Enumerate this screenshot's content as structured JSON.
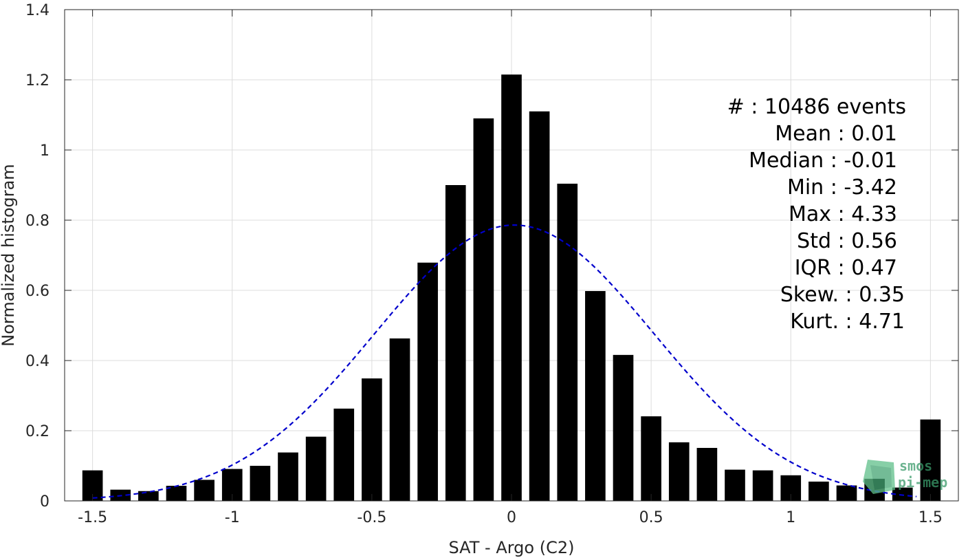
{
  "chart_data": {
    "type": "bar",
    "xlabel": "SAT - Argo (C2)",
    "ylabel": "Normalized histogram",
    "xlim": [
      -1.6,
      1.6
    ],
    "ylim": [
      0,
      1.4
    ],
    "grid": true,
    "xticks": [
      "-1.5",
      "-1",
      "-0.5",
      "0",
      "0.5",
      "1",
      "1.5"
    ],
    "xtick_values": [
      -1.5,
      -1,
      -0.5,
      0,
      0.5,
      1,
      1.5
    ],
    "yticks": [
      "0",
      "0.2",
      "0.4",
      "0.6",
      "0.8",
      "1",
      "1.2",
      "1.4"
    ],
    "ytick_values": [
      0,
      0.2,
      0.4,
      0.6,
      0.8,
      1,
      1.2,
      1.4
    ],
    "bar_width": 0.073,
    "bar_color": "#000000",
    "bars": {
      "x": [
        -1.5,
        -1.4,
        -1.3,
        -1.2,
        -1.1,
        -1.0,
        -0.9,
        -0.8,
        -0.7,
        -0.6,
        -0.5,
        -0.4,
        -0.3,
        -0.2,
        -0.1,
        0.0,
        0.1,
        0.2,
        0.3,
        0.4,
        0.5,
        0.6,
        0.7,
        0.8,
        0.9,
        1.0,
        1.1,
        1.2,
        1.3,
        1.4,
        1.5
      ],
      "values": [
        0.087,
        0.032,
        0.028,
        0.043,
        0.06,
        0.091,
        0.1,
        0.138,
        0.183,
        0.263,
        0.349,
        0.463,
        0.679,
        0.9,
        1.09,
        1.215,
        1.11,
        0.904,
        0.598,
        0.416,
        0.241,
        0.167,
        0.151,
        0.089,
        0.087,
        0.073,
        0.055,
        0.044,
        0.063,
        0.038,
        0.232
      ]
    },
    "fit": {
      "style": "dashed",
      "color": "#0000cc",
      "x_range": [
        -1.5,
        1.45
      ],
      "mean": 0.01,
      "std": 0.5,
      "peak": 0.786,
      "baseline": 0.0
    },
    "stats": {
      "count_line": "#  : 10486 events",
      "mean_line": "Mean : 0.01",
      "median_line": "Median : -0.01",
      "min_line": "Min : -3.42",
      "max_line": "Max : 4.33",
      "std_line": "Std : 0.56",
      "iqr_line": "IQR : 0.47",
      "skew_line": "Skew. : 0.35",
      "kurt_line": "Kurt. : 4.71"
    }
  },
  "logo": {
    "line1": "smos",
    "line2": "pi-mep",
    "color": "#3a9a6a"
  }
}
